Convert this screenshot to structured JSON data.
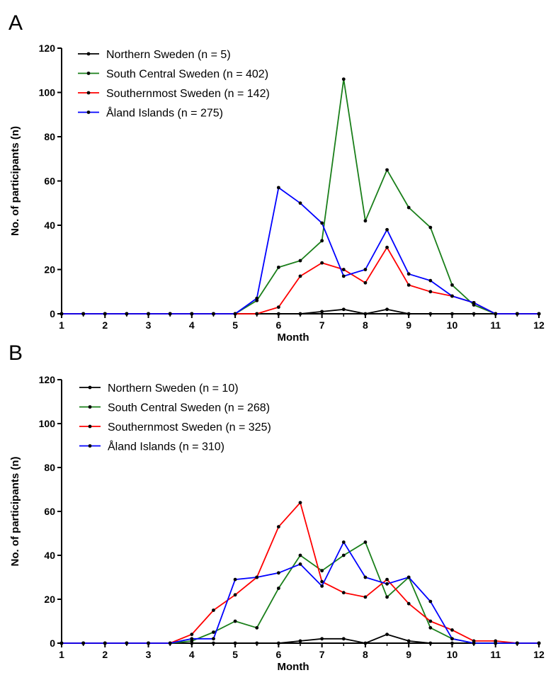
{
  "chart_data": [
    {
      "panel_label": "A",
      "type": "line",
      "xlabel": "Month",
      "ylabel": "No. of participants (n)",
      "xlim": [
        1,
        12
      ],
      "ylim": [
        0,
        120
      ],
      "xticks": [
        1,
        2,
        3,
        4,
        5,
        6,
        7,
        8,
        9,
        10,
        11,
        12
      ],
      "yticks": [
        0,
        20,
        40,
        60,
        80,
        100,
        120
      ],
      "grid": false,
      "legend_position": "top-left",
      "x": [
        1,
        1.5,
        2,
        2.5,
        3,
        3.5,
        4,
        4.5,
        5,
        5.5,
        6,
        6.5,
        7,
        7.5,
        8,
        8.5,
        9,
        9.5,
        10,
        10.5,
        11,
        11.5,
        12
      ],
      "series": [
        {
          "name": "Northern Sweden (n = 5)",
          "color": "#000000",
          "values": [
            0,
            0,
            0,
            0,
            0,
            0,
            0,
            0,
            0,
            0,
            0,
            0,
            1,
            2,
            0,
            2,
            0,
            0,
            0,
            0,
            0,
            0,
            0
          ]
        },
        {
          "name": "South Central Sweden (n = 402)",
          "color": "#1a7f1a",
          "values": [
            0,
            0,
            0,
            0,
            0,
            0,
            0,
            0,
            0,
            6,
            21,
            24,
            33,
            106,
            42,
            65,
            48,
            39,
            13,
            4,
            0,
            0,
            0
          ]
        },
        {
          "name": "Southernmost Sweden (n = 142)",
          "color": "#ff0000",
          "values": [
            0,
            0,
            0,
            0,
            0,
            0,
            0,
            0,
            0,
            0,
            3,
            17,
            23,
            20,
            14,
            30,
            13,
            10,
            8,
            5,
            0,
            0,
            0
          ]
        },
        {
          "name": "Åland Islands (n = 275)",
          "color": "#0000ff",
          "values": [
            0,
            0,
            0,
            0,
            0,
            0,
            0,
            0,
            0,
            7,
            57,
            50,
            41,
            17,
            20,
            38,
            18,
            15,
            8,
            5,
            0,
            0,
            0
          ]
        }
      ]
    },
    {
      "panel_label": "B",
      "type": "line",
      "xlabel": "Month",
      "ylabel": "No. of participants (n)",
      "xlim": [
        1,
        12
      ],
      "ylim": [
        0,
        120
      ],
      "xticks": [
        1,
        2,
        3,
        4,
        5,
        6,
        7,
        8,
        9,
        10,
        11,
        12
      ],
      "yticks": [
        0,
        20,
        40,
        60,
        80,
        100,
        120
      ],
      "grid": false,
      "legend_position": "top-left",
      "x": [
        1,
        1.5,
        2,
        2.5,
        3,
        3.5,
        4,
        4.5,
        5,
        5.5,
        6,
        6.5,
        7,
        7.5,
        8,
        8.5,
        9,
        9.5,
        10,
        10.5,
        11,
        11.5,
        12
      ],
      "series": [
        {
          "name": "Northern Sweden (n = 10)",
          "color": "#000000",
          "values": [
            0,
            0,
            0,
            0,
            0,
            0,
            0,
            0,
            0,
            0,
            0,
            1,
            2,
            2,
            0,
            4,
            1,
            0,
            0,
            0,
            0,
            0,
            0
          ]
        },
        {
          "name": "South Central Sweden (n = 268)",
          "color": "#1a7f1a",
          "values": [
            0,
            0,
            0,
            0,
            0,
            0,
            1,
            5,
            10,
            7,
            25,
            40,
            33,
            40,
            46,
            21,
            30,
            7,
            2,
            0,
            0,
            0,
            0
          ]
        },
        {
          "name": "Southernmost Sweden (n = 325)",
          "color": "#ff0000",
          "values": [
            0,
            0,
            0,
            0,
            0,
            0,
            4,
            15,
            22,
            30,
            53,
            64,
            28,
            23,
            21,
            29,
            18,
            10,
            6,
            1,
            1,
            0,
            0
          ]
        },
        {
          "name": "Åland Islands (n = 310)",
          "color": "#0000ff",
          "values": [
            0,
            0,
            0,
            0,
            0,
            0,
            2,
            2,
            29,
            30,
            32,
            36,
            26,
            46,
            30,
            27,
            30,
            19,
            2,
            0,
            0,
            0,
            0
          ]
        }
      ]
    }
  ]
}
